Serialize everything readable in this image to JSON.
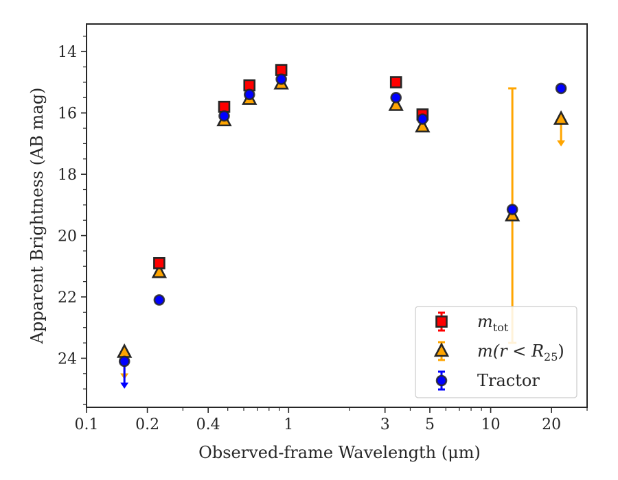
{
  "chart_data": {
    "type": "scatter",
    "xlabel": "Observed-frame Wavelength (μm)",
    "ylabel": "Apparent Brightness (AB mag)",
    "xscale": "log",
    "xlim": [
      0.1,
      30
    ],
    "ylim": [
      25.6,
      13.1
    ],
    "y_inverted": true,
    "x_ticks": [
      {
        "value": 0.1,
        "label": "0.1"
      },
      {
        "value": 0.2,
        "label": "0.2"
      },
      {
        "value": 0.4,
        "label": "0.4"
      },
      {
        "value": 1,
        "label": "1"
      },
      {
        "value": 3,
        "label": "3"
      },
      {
        "value": 5,
        "label": "5"
      },
      {
        "value": 10,
        "label": "10"
      },
      {
        "value": 20,
        "label": "20"
      }
    ],
    "x_minor_ticks": [
      0.3,
      0.5,
      0.6,
      0.7,
      0.8,
      0.9,
      2,
      4,
      6,
      7,
      8,
      9,
      30
    ],
    "y_ticks": [
      {
        "value": 14,
        "label": "14"
      },
      {
        "value": 16,
        "label": "16"
      },
      {
        "value": 18,
        "label": "18"
      },
      {
        "value": 20,
        "label": "20"
      },
      {
        "value": 22,
        "label": "22"
      },
      {
        "value": 24,
        "label": "24"
      }
    ],
    "legend_position": "lower-right",
    "series": [
      {
        "key": "mtot",
        "legend_main": "m",
        "legend_sub": "tot",
        "marker": "square",
        "color": "#ff0000",
        "edge": "#262626",
        "points": [
          {
            "x": 0.229,
            "y": 20.9
          },
          {
            "x": 0.48,
            "y": 15.8
          },
          {
            "x": 0.64,
            "y": 15.1
          },
          {
            "x": 0.92,
            "y": 14.6
          },
          {
            "x": 3.4,
            "y": 15.0
          },
          {
            "x": 4.6,
            "y": 16.05
          }
        ]
      },
      {
        "key": "mr25",
        "legend_main": "m(r < R",
        "legend_sub": "25",
        "legend_after": ")",
        "marker": "triangle",
        "color": "#ffa500",
        "edge": "#262626",
        "points": [
          {
            "x": 0.154,
            "y": 23.8,
            "upper_limit": true
          },
          {
            "x": 0.229,
            "y": 21.2
          },
          {
            "x": 0.48,
            "y": 16.25
          },
          {
            "x": 0.64,
            "y": 15.55
          },
          {
            "x": 0.92,
            "y": 15.05
          },
          {
            "x": 3.4,
            "y": 15.75
          },
          {
            "x": 4.6,
            "y": 16.45
          },
          {
            "x": 12.8,
            "y": 19.35,
            "err_low": 15.2,
            "err_high": 23.5
          },
          {
            "x": 22.3,
            "y": 16.2,
            "upper_limit": true
          }
        ]
      },
      {
        "key": "tractor",
        "legend_main": "Tractor",
        "marker": "circle",
        "color": "#0000ff",
        "edge": "#262626",
        "points": [
          {
            "x": 0.154,
            "y": 24.1,
            "upper_limit": true
          },
          {
            "x": 0.229,
            "y": 22.1
          },
          {
            "x": 0.48,
            "y": 16.1
          },
          {
            "x": 0.64,
            "y": 15.4
          },
          {
            "x": 0.92,
            "y": 14.9
          },
          {
            "x": 3.4,
            "y": 15.5
          },
          {
            "x": 4.6,
            "y": 16.2
          },
          {
            "x": 12.8,
            "y": 19.15
          },
          {
            "x": 22.3,
            "y": 15.2
          }
        ]
      }
    ]
  }
}
